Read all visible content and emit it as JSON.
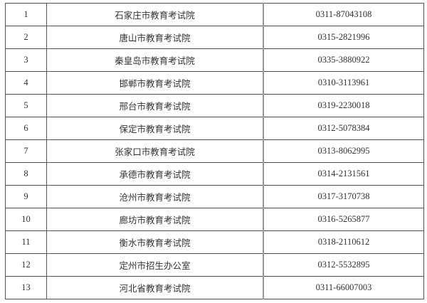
{
  "rows": [
    {
      "no": "1",
      "name": "石家庄市教育考试院",
      "phone": "0311-87043108"
    },
    {
      "no": "2",
      "name": "唐山市教育考试院",
      "phone": "0315-2821996"
    },
    {
      "no": "3",
      "name": "秦皇岛市教育考试院",
      "phone": "0335-3880922"
    },
    {
      "no": "4",
      "name": "邯郸市教育考试院",
      "phone": "0310-3113961"
    },
    {
      "no": "5",
      "name": "邢台市教育考试院",
      "phone": "0319-2230018"
    },
    {
      "no": "6",
      "name": "保定市教育考试院",
      "phone": "0312-5078384"
    },
    {
      "no": "7",
      "name": "张家口市教育考试院",
      "phone": "0313-8062995"
    },
    {
      "no": "8",
      "name": "承德市教育考试院",
      "phone": "0314-2131561"
    },
    {
      "no": "9",
      "name": "沧州市教育考试院",
      "phone": "0317-3170738"
    },
    {
      "no": "10",
      "name": "廊坊市教育考试院",
      "phone": "0316-5265877"
    },
    {
      "no": "11",
      "name": "衡水市教育考试院",
      "phone": "0318-2110612"
    },
    {
      "no": "12",
      "name": "定州市招生办公室",
      "phone": "0312-5532895"
    },
    {
      "no": "13",
      "name": "河北省教育考试院",
      "phone": "0311-66007003"
    }
  ]
}
